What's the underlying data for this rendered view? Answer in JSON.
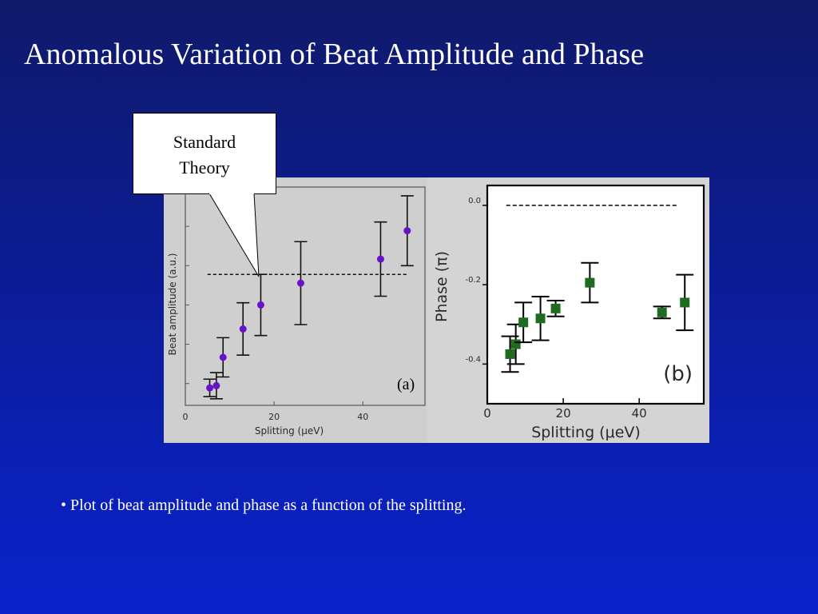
{
  "slide": {
    "title": "Anomalous Variation of  Beat Amplitude and Phase",
    "bullet": "• Plot of beat amplitude and phase as a function of the splitting."
  },
  "callout": {
    "lines": [
      "Standard",
      "Theory"
    ]
  },
  "colors": {
    "amplitude_marker": "#6a12c8",
    "phase_marker": "#1f6b1f",
    "background": "#0c1c96"
  },
  "chart_data": [
    {
      "type": "scatter",
      "panel_label": "(a)",
      "title": "",
      "xlabel": "Splitting (μeV)",
      "ylabel": "Beat amplitude (a.u.)",
      "xlim": [
        0,
        54
      ],
      "ylim": [
        0,
        1
      ],
      "x_ticks": [
        "0",
        "20",
        "40"
      ],
      "y_tick_labels_shown": false,
      "reference_line": {
        "label": "Standard Theory",
        "style": "dashed",
        "x_range": [
          5,
          50
        ],
        "y": 0.6
      },
      "series": [
        {
          "marker": "circle",
          "points": [
            {
              "x": 5.5,
              "y": 0.08,
              "err": 0.04
            },
            {
              "x": 7.0,
              "y": 0.09,
              "err": 0.06
            },
            {
              "x": 8.5,
              "y": 0.22,
              "err": 0.09
            },
            {
              "x": 13.0,
              "y": 0.35,
              "err": 0.12
            },
            {
              "x": 17.0,
              "y": 0.46,
              "err": 0.14
            },
            {
              "x": 26.0,
              "y": 0.56,
              "err": 0.19
            },
            {
              "x": 44.0,
              "y": 0.67,
              "err": 0.17
            },
            {
              "x": 50.0,
              "y": 0.8,
              "err": 0.16
            }
          ]
        }
      ]
    },
    {
      "type": "scatter",
      "panel_label": "(b)",
      "title": "",
      "xlabel": "Splitting (μeV)",
      "ylabel": "Phase (π)",
      "xlim": [
        0,
        57
      ],
      "ylim": [
        -0.5,
        0.05
      ],
      "x_ticks": [
        "0",
        "20",
        "40"
      ],
      "y_ticks": [
        "0.0",
        "-0.2",
        "-0.4"
      ],
      "reference_line": {
        "style": "dashed",
        "x_range": [
          5,
          50
        ],
        "y": 0.0
      },
      "series": [
        {
          "marker": "square",
          "points": [
            {
              "x": 6.0,
              "y": -0.375,
              "err": 0.045
            },
            {
              "x": 7.5,
              "y": -0.35,
              "err": 0.05
            },
            {
              "x": 9.5,
              "y": -0.295,
              "err": 0.05
            },
            {
              "x": 14.0,
              "y": -0.285,
              "err": 0.055
            },
            {
              "x": 18.0,
              "y": -0.26,
              "err": 0.02
            },
            {
              "x": 27.0,
              "y": -0.195,
              "err": 0.05
            },
            {
              "x": 46.0,
              "y": -0.27,
              "err": 0.015
            },
            {
              "x": 52.0,
              "y": -0.245,
              "err": 0.07
            }
          ]
        }
      ]
    }
  ]
}
